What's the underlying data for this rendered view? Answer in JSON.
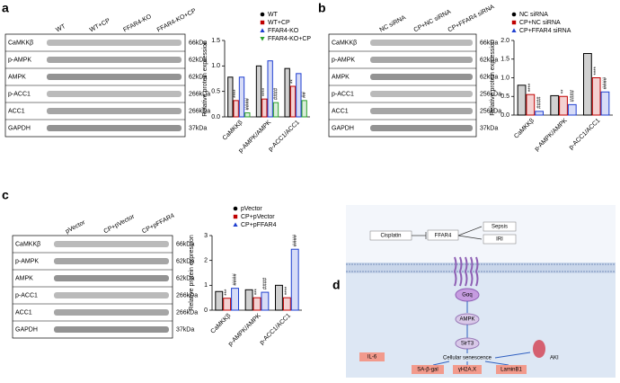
{
  "panel_labels": [
    "a",
    "b",
    "c",
    "d"
  ],
  "chart_data": [
    {
      "type": "bar",
      "ylabel": "Relative protein expression",
      "categories": [
        "CaMKKβ",
        "p-AMPK/AMPK",
        "p-ACC1/ACC1"
      ],
      "series": [
        {
          "name": "WT",
          "color": "#000000",
          "values": [
            0.78,
            1.0,
            0.95
          ]
        },
        {
          "name": "WT+CP",
          "color": "#c00000",
          "values": [
            0.32,
            0.35,
            0.6
          ],
          "significance": [
            "****",
            "****",
            "**"
          ]
        },
        {
          "name": "FFAR4-KO",
          "color": "#1f3fd0",
          "values": [
            0.78,
            1.1,
            0.85
          ]
        },
        {
          "name": "FFAR4-KO+CP",
          "color": "#2ca02c",
          "values": [
            0.08,
            0.28,
            0.32
          ],
          "significance": [
            "####",
            "####",
            "##"
          ]
        }
      ],
      "ylim": [
        0,
        1.5
      ],
      "yticks": [
        {
          "value": 0,
          "label": "0.0"
        },
        {
          "value": 0.5,
          "label": "0.5"
        },
        {
          "value": 1,
          "label": "1.0"
        },
        {
          "value": 1.5,
          "label": "1.5"
        }
      ],
      "legend": "top"
    },
    {
      "type": "bar",
      "ylabel": "Relative protein expression",
      "categories": [
        "CaMKKβ",
        "p-AMPK/AMPK",
        "p-ACC1/ACC1"
      ],
      "series": [
        {
          "name": "NC siRNA",
          "color": "#000000",
          "values": [
            0.8,
            0.52,
            1.65
          ]
        },
        {
          "name": "CP+NC siRNA",
          "color": "#c00000",
          "values": [
            0.55,
            0.5,
            1.0
          ],
          "significance": [
            "****",
            "**",
            "****"
          ]
        },
        {
          "name": "CP+FFAR4 siRNA",
          "color": "#1f3fd0",
          "values": [
            0.1,
            0.28,
            0.62
          ],
          "significance": [
            "####",
            "####",
            "####"
          ]
        }
      ],
      "ylim": [
        0,
        2
      ],
      "yticks": [
        {
          "value": 0,
          "label": "0.0"
        },
        {
          "value": 0.5,
          "label": "0.5"
        },
        {
          "value": 1,
          "label": "1.0"
        },
        {
          "value": 1.5,
          "label": "1.5"
        },
        {
          "value": 2,
          "label": "2.0"
        }
      ],
      "legend": "top"
    },
    {
      "type": "bar",
      "ylabel": "Relative protein expression",
      "categories": [
        "CaMKKβ",
        "p-AMPK/AMPK",
        "p-ACC1/ACC1"
      ],
      "series": [
        {
          "name": "pVector",
          "color": "#000000",
          "values": [
            0.75,
            0.82,
            1.0
          ]
        },
        {
          "name": "CP+pVector",
          "color": "#c00000",
          "values": [
            0.48,
            0.5,
            0.5
          ],
          "significance": [
            "***",
            "***",
            "****"
          ]
        },
        {
          "name": "CP+pFFAR4",
          "color": "#1f3fd0",
          "values": [
            0.88,
            0.72,
            2.45
          ],
          "significance": [
            "####",
            "####",
            "####"
          ]
        }
      ],
      "ylim": [
        0,
        3
      ],
      "yticks": [
        0,
        1,
        2,
        3
      ],
      "legend": "top"
    }
  ],
  "blots": [
    {
      "lanes": [
        "WT",
        "WT+CP",
        "FFAR4-KO",
        "FFAR4-KO+CP"
      ],
      "rows": [
        {
          "protein": "CaMKKβ",
          "size": "66kDa"
        },
        {
          "protein": "p-AMPK",
          "size": "62kDa"
        },
        {
          "protein": "AMPK",
          "size": "62kDa"
        },
        {
          "protein": "p-ACC1",
          "size": "266kDa"
        },
        {
          "protein": "ACC1",
          "size": "266kDa"
        },
        {
          "protein": "GAPDH",
          "size": "37kDa"
        }
      ]
    },
    {
      "lanes": [
        "NC siRNA",
        "CP+NC siRNA",
        "CP+FFAR4 siRNA"
      ],
      "rows": [
        {
          "protein": "CaMKKβ",
          "size": "66kDa"
        },
        {
          "protein": "p-AMPK",
          "size": "62kDa"
        },
        {
          "protein": "AMPK",
          "size": "62kDa"
        },
        {
          "protein": "p-ACC1",
          "size": "256kDa"
        },
        {
          "protein": "ACC1",
          "size": "256kDa"
        },
        {
          "protein": "GAPDH",
          "size": "37kDa"
        }
      ]
    },
    {
      "lanes": [
        "pVector",
        "CP+pVector",
        "CP+pFFAR4"
      ],
      "rows": [
        {
          "protein": "CaMKKβ",
          "size": "66kDa"
        },
        {
          "protein": "p-AMPK",
          "size": "62kDa"
        },
        {
          "protein": "AMPK",
          "size": "62kDa"
        },
        {
          "protein": "p-ACC1",
          "size": "266kDa"
        },
        {
          "protein": "ACC1",
          "size": "266kDa"
        },
        {
          "protein": "GAPDH",
          "size": "37kDa"
        }
      ]
    }
  ],
  "diagram": {
    "cisplatin": "Cisplatin",
    "receptor": "FFAR4",
    "sepsis": "Sepsis",
    "iri": "IRI",
    "gq": "Gαq",
    "ampk": "AMPK",
    "sirt3": "SirT3",
    "il6": "IL-6",
    "senescence": "Cellular senescence",
    "aki": "AKI",
    "sagal": "SA-β-gal",
    "h2ax": "γH2A.X",
    "lamin": "LaminB1"
  }
}
